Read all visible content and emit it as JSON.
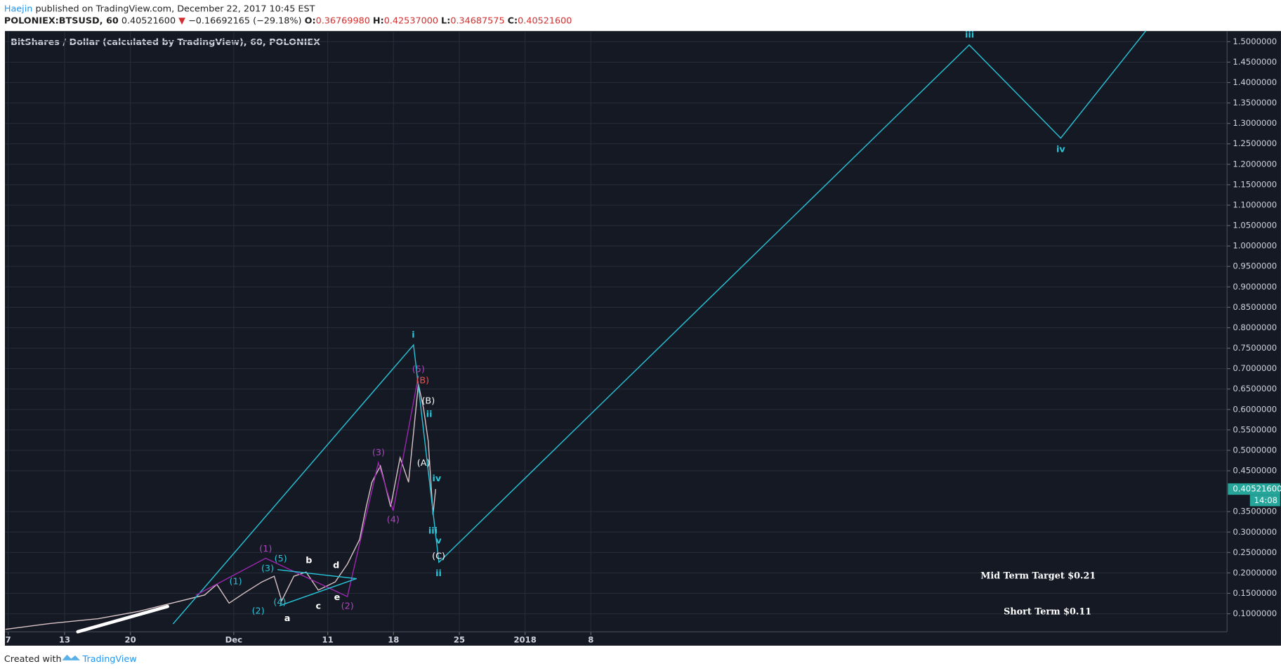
{
  "header": {
    "author": "Haejin",
    "published": "published on TradingView.com, December 22, 2017 10:45 EST",
    "symbol": "POLONIEX:BTSUSD, 60",
    "last": "0.40521600",
    "arrow": "▼",
    "change": "−0.16692165 (−29.18%)",
    "ohlc": [
      {
        "label": "O:",
        "value": "0.36769980"
      },
      {
        "label": "H:",
        "value": "0.42537000"
      },
      {
        "label": "L:",
        "value": "0.34687575"
      },
      {
        "label": "C:",
        "value": "0.40521600"
      }
    ]
  },
  "footer": {
    "created": "Created with",
    "brand": "TradingView"
  },
  "chart_data": {
    "type": "line",
    "title": "BitShares / Dollar (calculated by TradingView), 60, POLONIEX",
    "xlim": [
      -0.35,
      129.7
    ],
    "ylim": [
      0.056,
      1.526
    ],
    "grid": true,
    "xticks": [
      {
        "value": 0,
        "label": "7"
      },
      {
        "value": 6,
        "label": "13"
      },
      {
        "value": 13,
        "label": "20"
      },
      {
        "value": 24,
        "label": "Dec"
      },
      {
        "value": 34,
        "label": "11"
      },
      {
        "value": 41,
        "label": "18"
      },
      {
        "value": 48,
        "label": "25"
      },
      {
        "value": 55,
        "label": "2018"
      },
      {
        "value": 62,
        "label": "8"
      }
    ],
    "yticks": [
      {
        "value": 0.1,
        "label": "0.1000000"
      },
      {
        "value": 0.15,
        "label": "0.1500000"
      },
      {
        "value": 0.2,
        "label": "0.2000000"
      },
      {
        "value": 0.25,
        "label": "0.2500000"
      },
      {
        "value": 0.3,
        "label": "0.3000000"
      },
      {
        "value": 0.35,
        "label": "0.3500000"
      },
      {
        "value": 0.45,
        "label": "0.4500000"
      },
      {
        "value": 0.5,
        "label": "0.5000000"
      },
      {
        "value": 0.55,
        "label": "0.5500000"
      },
      {
        "value": 0.6,
        "label": "0.6000000"
      },
      {
        "value": 0.65,
        "label": "0.6500000"
      },
      {
        "value": 0.7,
        "label": "0.7000000"
      },
      {
        "value": 0.75,
        "label": "0.7500000"
      },
      {
        "value": 0.8,
        "label": "0.8000000"
      },
      {
        "value": 0.85,
        "label": "0.8500000"
      },
      {
        "value": 0.9,
        "label": "0.9000000"
      },
      {
        "value": 0.95,
        "label": "0.9500000"
      },
      {
        "value": 1.0,
        "label": "1.0000000"
      },
      {
        "value": 1.05,
        "label": "1.0500000"
      },
      {
        "value": 1.1,
        "label": "1.1000000"
      },
      {
        "value": 1.15,
        "label": "1.1500000"
      },
      {
        "value": 1.2,
        "label": "1.2000000"
      },
      {
        "value": 1.25,
        "label": "1.2500000"
      },
      {
        "value": 1.3,
        "label": "1.3000000"
      },
      {
        "value": 1.35,
        "label": "1.3500000"
      },
      {
        "value": 1.4,
        "label": "1.4000000"
      },
      {
        "value": 1.45,
        "label": "1.4500000"
      },
      {
        "value": 1.5,
        "label": "1.5000000"
      }
    ],
    "series": [
      {
        "color": "#d9c3c6",
        "x": [
          -0.3,
          4.35,
          9.57,
          13.9,
          17.4,
          20.9,
          22.2,
          23.5,
          25.2,
          27.0,
          28.3,
          29.1,
          30.4,
          31.7,
          33.0,
          34.8,
          36.1,
          37.4,
          38.1,
          38.7,
          39.6,
          40.7,
          41.7,
          42.6,
          43.65,
          44.2,
          44.7,
          45.2,
          45.48
        ],
        "values": [
          0.062,
          0.076,
          0.088,
          0.106,
          0.126,
          0.146,
          0.172,
          0.126,
          0.152,
          0.178,
          0.192,
          0.132,
          0.192,
          0.202,
          0.158,
          0.178,
          0.222,
          0.282,
          0.362,
          0.422,
          0.462,
          0.362,
          0.482,
          0.422,
          0.662,
          0.602,
          0.522,
          0.342,
          0.405216
        ]
      }
    ],
    "last_price": {
      "value": 0.405216,
      "label": "0.40521600",
      "countdown": "14:08",
      "color": "#26a69a"
    },
    "wave_lines": [
      {
        "color": "#26c6da",
        "x": [
          17.57,
          43.13,
          45.83,
          102.26,
          112.0,
          121.04
        ],
        "y": [
          0.076,
          0.758,
          0.226,
          1.492,
          1.264,
          1.526
        ]
      },
      {
        "color": "#9c27b0",
        "x": [
          20.0,
          27.39,
          36.09,
          39.39,
          40.96,
          43.65
        ],
        "y": [
          0.146,
          0.236,
          0.142,
          0.47,
          0.352,
          0.682
        ]
      },
      {
        "color": "#26c6da",
        "x": [
          28.7,
          37.04
        ],
        "y": [
          0.208,
          0.186
        ]
      },
      {
        "color": "#26c6da",
        "x": [
          28.9,
          37.04
        ],
        "y": [
          0.12,
          0.186
        ]
      },
      {
        "color": "#ffffff",
        "thick": true,
        "x": [
          7.4,
          16.96
        ],
        "y": [
          0.056,
          0.118
        ]
      }
    ],
    "labels": [
      {
        "text": "i",
        "x": 43.1,
        "y": 0.782,
        "color": "#26c6da",
        "bold": true
      },
      {
        "text": "ii",
        "x": 45.8,
        "y": 0.198,
        "color": "#26c6da",
        "bold": true
      },
      {
        "text": "iii",
        "x": 102.3,
        "y": 1.516,
        "color": "#26c6da",
        "bold": true
      },
      {
        "text": "iv",
        "x": 112.0,
        "y": 1.236,
        "color": "#26c6da",
        "bold": true
      },
      {
        "text": "(1)",
        "x": 27.4,
        "y": 0.258,
        "color": "#ab47bc"
      },
      {
        "text": "(2)",
        "x": 36.1,
        "y": 0.118,
        "color": "#ab47bc"
      },
      {
        "text": "(3)",
        "x": 39.4,
        "y": 0.494,
        "color": "#ab47bc"
      },
      {
        "text": "(4)",
        "x": 40.96,
        "y": 0.33,
        "color": "#ab47bc"
      },
      {
        "text": "(5)",
        "x": 43.65,
        "y": 0.698,
        "color": "#ab47bc"
      },
      {
        "text": "(1)",
        "x": 24.2,
        "y": 0.178,
        "color": "#26c6da"
      },
      {
        "text": "(2)",
        "x": 26.6,
        "y": 0.106,
        "color": "#26c6da"
      },
      {
        "text": "(3)",
        "x": 27.6,
        "y": 0.21,
        "color": "#26c6da"
      },
      {
        "text": "(4)",
        "x": 28.9,
        "y": 0.128,
        "color": "#26c6da"
      },
      {
        "text": "(5)",
        "x": 29.0,
        "y": 0.234,
        "color": "#26c6da"
      },
      {
        "text": "a",
        "x": 29.7,
        "y": 0.088,
        "color": "#ffffff",
        "bold": true
      },
      {
        "text": "b",
        "x": 32.0,
        "y": 0.23,
        "color": "#ffffff",
        "bold": true
      },
      {
        "text": "c",
        "x": 33.0,
        "y": 0.118,
        "color": "#ffffff",
        "bold": true
      },
      {
        "text": "d",
        "x": 34.9,
        "y": 0.218,
        "color": "#ffffff",
        "bold": true
      },
      {
        "text": "e",
        "x": 35.0,
        "y": 0.14,
        "color": "#ffffff",
        "bold": true
      },
      {
        "text": "(B)",
        "x": 44.1,
        "y": 0.67,
        "color": "#ef5350"
      },
      {
        "text": "(B)",
        "x": 44.7,
        "y": 0.62,
        "color": "#ffffff"
      },
      {
        "text": "(A)",
        "x": 44.2,
        "y": 0.468,
        "color": "#ffffff"
      },
      {
        "text": "ii",
        "x": 44.8,
        "y": 0.588,
        "color": "#26c6da",
        "bold": true
      },
      {
        "text": "iv",
        "x": 45.6,
        "y": 0.43,
        "color": "#26c6da",
        "bold": true
      },
      {
        "text": "iii",
        "x": 45.2,
        "y": 0.302,
        "color": "#26c6da",
        "bold": true
      },
      {
        "text": "v",
        "x": 45.8,
        "y": 0.278,
        "color": "#26c6da",
        "bold": true
      },
      {
        "text": "(C)",
        "x": 45.8,
        "y": 0.24,
        "color": "#ffffff"
      },
      {
        "text": "Mid Term Target $0.21",
        "x": 109.6,
        "y": 0.192,
        "color": "#ffffff",
        "bold": true,
        "serif": true
      },
      {
        "text": "Short Term $0.11",
        "x": 110.6,
        "y": 0.104,
        "color": "#ffffff",
        "bold": true,
        "serif": true
      }
    ]
  }
}
